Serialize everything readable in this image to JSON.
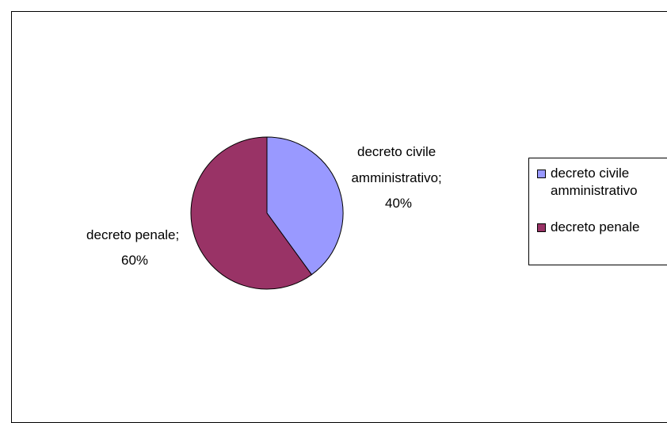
{
  "chart_data": {
    "type": "pie",
    "title": "",
    "categories": [
      "decreto civile amministrativo",
      "decreto penale"
    ],
    "values": [
      40,
      60
    ],
    "unit": "%",
    "data_labels": [
      {
        "line1": "decreto civile",
        "line2": "amministrativo;",
        "line3": "40%"
      },
      {
        "line1": "decreto penale;",
        "line2": "60%"
      }
    ],
    "colors": [
      "#9999ff",
      "#993366"
    ],
    "legend": {
      "placement": "right",
      "entries": [
        {
          "line1": "decreto civile",
          "line2": "amministrativo"
        },
        {
          "line1": "decreto penale"
        }
      ]
    }
  }
}
